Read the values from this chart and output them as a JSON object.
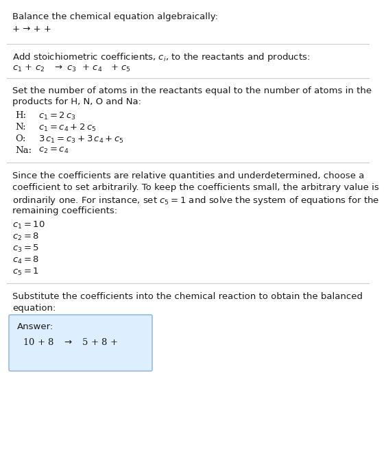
{
  "title": "Balance the chemical equation algebraically:",
  "section1_eq": "+ → + +",
  "section2_header": "Add stoichiometric coefficients, $c_i$, to the reactants and products:",
  "section2_eq_parts": [
    "c_1",
    " +c_2",
    "  → c_3",
    " +c_4",
    "  +c_5"
  ],
  "section3_header1": "Set the number of atoms in the reactants equal to the number of atoms in the",
  "section3_header2": "products for H, N, O and Na:",
  "section4_header": [
    "Since the coefficients are relative quantities and underdetermined, choose a",
    "coefficient to set arbitrarily. To keep the coefficients small, the arbitrary value is",
    "ordinarily one. For instance, set $c_5 = 1$ and solve the system of equations for the",
    "remaining coefficients:"
  ],
  "section5_header1": "Substitute the coefficients into the chemical reaction to obtain the balanced",
  "section5_header2": "equation:",
  "answer_label": "Answer:",
  "answer_eq": "  10 + 8  →  5 + 8 +",
  "bg_color": "#ffffff",
  "text_color": "#1a1a1a",
  "line_color": "#cccccc",
  "answer_bg": "#ddeeff",
  "answer_border": "#99bbdd"
}
